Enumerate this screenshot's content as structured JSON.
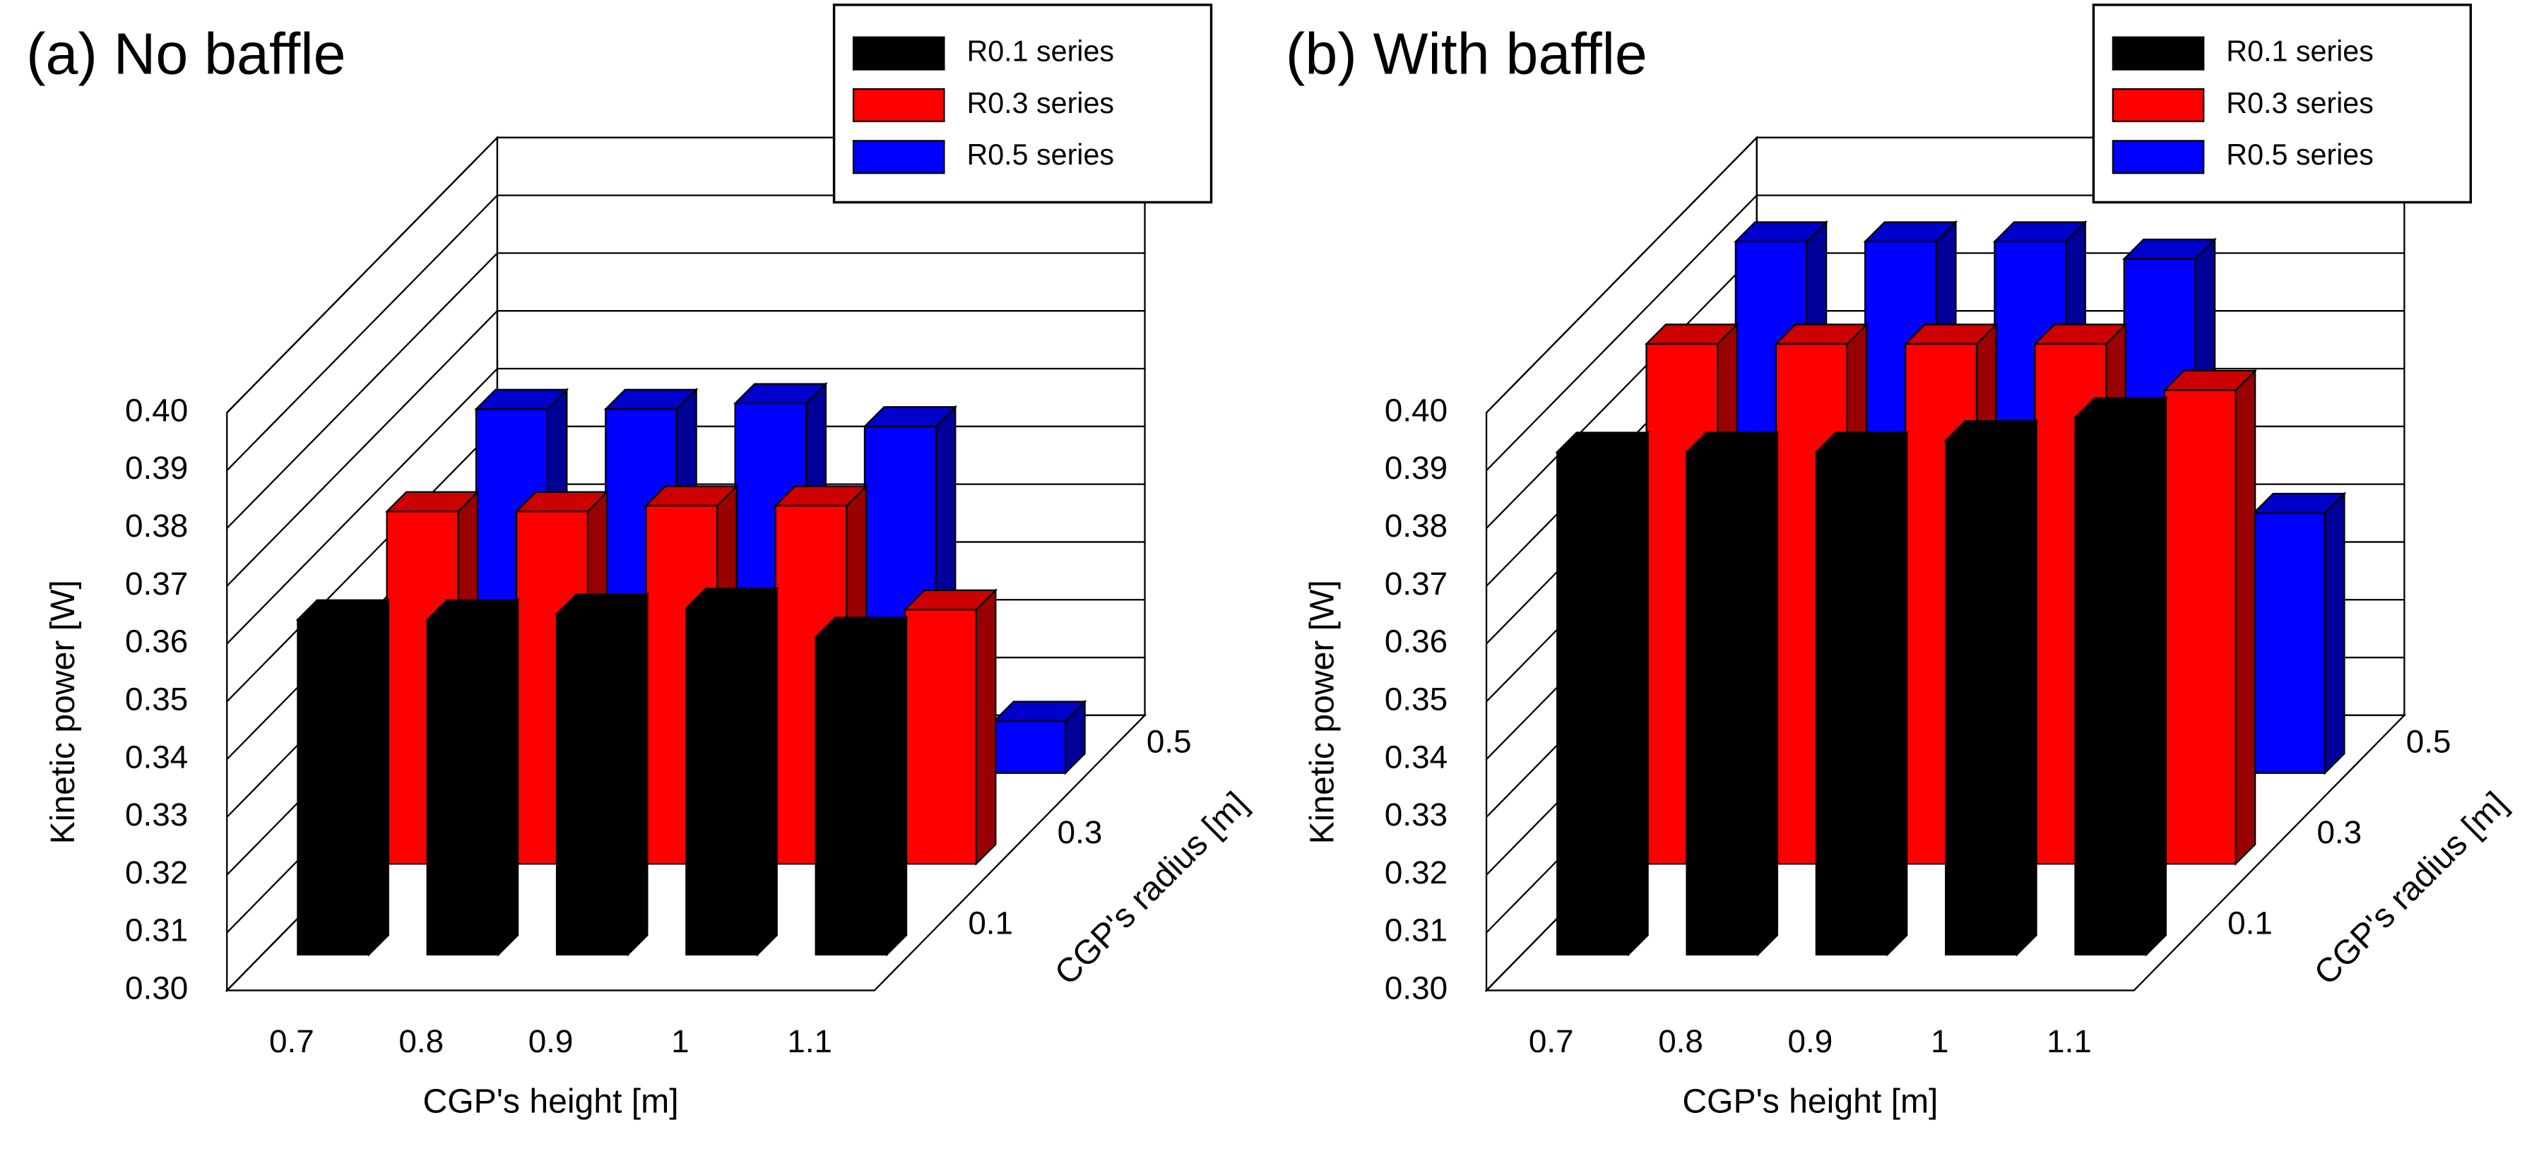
{
  "chart_data": [
    {
      "type": "bar3d",
      "title": "(a) No baffle",
      "categories": [
        "0.7",
        "0.8",
        "0.9",
        "1",
        "1.1"
      ],
      "depth_categories": [
        "0.1",
        "0.3",
        "0.5"
      ],
      "series": [
        {
          "name": "R0.1 series",
          "color": "#000000",
          "values": [
            0.358,
            0.358,
            0.359,
            0.36,
            0.355
          ]
        },
        {
          "name": "R0.3 series",
          "color": "#ff0000",
          "values": [
            0.361,
            0.361,
            0.362,
            0.362,
            0.344
          ]
        },
        {
          "name": "R0.5 series",
          "color": "#0000ff",
          "values": [
            0.363,
            0.363,
            0.364,
            0.36,
            0.309
          ]
        }
      ],
      "xlabel": "CGP's height [m]",
      "ylabel": "Kinetic power [W]",
      "zlabel": "CGP's radius [m]",
      "ylim": [
        0.3,
        0.4
      ],
      "yticks": [
        {
          "value": 0.3,
          "label": "0.30"
        },
        {
          "value": 0.31,
          "label": "0.31"
        },
        {
          "value": 0.32,
          "label": "0.32"
        },
        {
          "value": 0.33,
          "label": "0.33"
        },
        {
          "value": 0.34,
          "label": "0.34"
        },
        {
          "value": 0.35,
          "label": "0.35"
        },
        {
          "value": 0.36,
          "label": "0.36"
        },
        {
          "value": 0.37,
          "label": "0.37"
        },
        {
          "value": 0.38,
          "label": "0.38"
        },
        {
          "value": 0.39,
          "label": "0.39"
        },
        {
          "value": 0.4,
          "label": "0.40"
        }
      ],
      "grid": true,
      "legend": "upper right"
    },
    {
      "type": "bar3d",
      "title": "(b) With baffle",
      "categories": [
        "0.7",
        "0.8",
        "0.9",
        "1",
        "1.1"
      ],
      "depth_categories": [
        "0.1",
        "0.3",
        "0.5"
      ],
      "series": [
        {
          "name": "R0.1 series",
          "color": "#000000",
          "values": [
            0.387,
            0.387,
            0.387,
            0.389,
            0.393
          ]
        },
        {
          "name": "R0.3 series",
          "color": "#ff0000",
          "values": [
            0.39,
            0.39,
            0.39,
            0.39,
            0.382
          ]
        },
        {
          "name": "R0.5 series",
          "color": "#0000ff",
          "values": [
            0.392,
            0.392,
            0.392,
            0.389,
            0.345
          ]
        }
      ],
      "xlabel": "CGP's height [m]",
      "ylabel": "Kinetic power [W]",
      "zlabel": "CGP's radius [m]",
      "ylim": [
        0.3,
        0.4
      ],
      "yticks": [
        {
          "value": 0.3,
          "label": "0.30"
        },
        {
          "value": 0.31,
          "label": "0.31"
        },
        {
          "value": 0.32,
          "label": "0.32"
        },
        {
          "value": 0.33,
          "label": "0.33"
        },
        {
          "value": 0.34,
          "label": "0.34"
        },
        {
          "value": 0.35,
          "label": "0.35"
        },
        {
          "value": 0.36,
          "label": "0.36"
        },
        {
          "value": 0.37,
          "label": "0.37"
        },
        {
          "value": 0.38,
          "label": "0.38"
        },
        {
          "value": 0.39,
          "label": "0.39"
        },
        {
          "value": 0.4,
          "label": "0.40"
        }
      ],
      "grid": true,
      "legend": "upper right"
    }
  ]
}
